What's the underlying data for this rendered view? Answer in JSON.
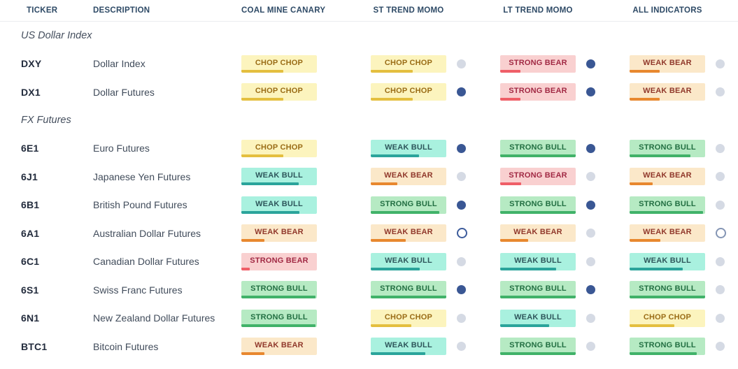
{
  "columns": [
    "TICKER",
    "DESCRIPTION",
    "COAL MINE CANARY",
    "ST TREND MOMO",
    "LT TREND MOMO",
    "ALL INDICATORS"
  ],
  "badge_types": {
    "chop": {
      "label": "CHOP CHOP",
      "bg": "#FCF4BE",
      "text": "#9A6C16",
      "bar": "#E4BF3F"
    },
    "weak_bull": {
      "label": "WEAK BULL",
      "bg": "#A9F1DF",
      "text": "#2E565B",
      "bar": "#2BA49B"
    },
    "strong_bull": {
      "label": "STRONG BULL",
      "bg": "#B6EAC3",
      "text": "#226F42",
      "bar": "#41B269"
    },
    "weak_bear": {
      "label": "WEAK BEAR",
      "bg": "#FBE8C9",
      "text": "#90382B",
      "bar": "#E8882F"
    },
    "strong_bear": {
      "label": "STRONG BEAR",
      "bg": "#F9D0D0",
      "text": "#A12944",
      "bar": "#EF5F68"
    }
  },
  "dot_colors": {
    "navy": "#3A5794",
    "gray": "#D5DAE4",
    "hollow_navy": "#3D5C9C",
    "hollow_gray": "#8495B4"
  },
  "sections": [
    {
      "label": "US Dollar Index",
      "rows": [
        {
          "ticker": "DXY",
          "description": "Dollar Index",
          "coal": {
            "type": "chop",
            "pct": 56
          },
          "st": {
            "type": "chop",
            "pct": 56,
            "dot": "gray"
          },
          "lt": {
            "type": "strong_bear",
            "pct": 27,
            "dot": "navy"
          },
          "all": {
            "type": "weak_bear",
            "pct": 40,
            "dot": "gray"
          }
        },
        {
          "ticker": "DX1",
          "description": "Dollar Futures",
          "coal": {
            "type": "chop",
            "pct": 56
          },
          "st": {
            "type": "chop",
            "pct": 56,
            "dot": "navy"
          },
          "lt": {
            "type": "strong_bear",
            "pct": 27,
            "dot": "navy"
          },
          "all": {
            "type": "weak_bear",
            "pct": 40,
            "dot": "gray"
          }
        }
      ]
    },
    {
      "label": "FX Futures",
      "rows": [
        {
          "ticker": "6E1",
          "description": "Euro Futures",
          "coal": {
            "type": "chop",
            "pct": 56
          },
          "st": {
            "type": "weak_bull",
            "pct": 64,
            "dot": "navy"
          },
          "lt": {
            "type": "strong_bull",
            "pct": 100,
            "dot": "navy"
          },
          "all": {
            "type": "strong_bull",
            "pct": 81,
            "dot": "gray"
          }
        },
        {
          "ticker": "6J1",
          "description": "Japanese Yen Futures",
          "coal": {
            "type": "weak_bull",
            "pct": 76
          },
          "st": {
            "type": "weak_bear",
            "pct": 35,
            "dot": "gray"
          },
          "lt": {
            "type": "strong_bear",
            "pct": 28,
            "dot": "gray"
          },
          "all": {
            "type": "weak_bear",
            "pct": 31,
            "dot": "gray"
          }
        },
        {
          "ticker": "6B1",
          "description": "British Pound Futures",
          "coal": {
            "type": "weak_bull",
            "pct": 77
          },
          "st": {
            "type": "strong_bull",
            "pct": 91,
            "dot": "navy"
          },
          "lt": {
            "type": "strong_bull",
            "pct": 100,
            "dot": "navy"
          },
          "all": {
            "type": "strong_bull",
            "pct": 97,
            "dot": "gray"
          }
        },
        {
          "ticker": "6A1",
          "description": "Australian Dollar Futures",
          "coal": {
            "type": "weak_bear",
            "pct": 31
          },
          "st": {
            "type": "weak_bear",
            "pct": 46,
            "dot": "hollow_navy"
          },
          "lt": {
            "type": "weak_bear",
            "pct": 37,
            "dot": "gray"
          },
          "all": {
            "type": "weak_bear",
            "pct": 41,
            "dot": "hollow_gray"
          }
        },
        {
          "ticker": "6C1",
          "description": "Canadian Dollar Futures",
          "coal": {
            "type": "strong_bear",
            "pct": 11
          },
          "st": {
            "type": "weak_bull",
            "pct": 65,
            "dot": "gray"
          },
          "lt": {
            "type": "weak_bull",
            "pct": 74,
            "dot": "gray"
          },
          "all": {
            "type": "weak_bull",
            "pct": 70,
            "dot": "gray"
          }
        },
        {
          "ticker": "6S1",
          "description": "Swiss Franc Futures",
          "coal": {
            "type": "strong_bull",
            "pct": 98
          },
          "st": {
            "type": "strong_bull",
            "pct": 100,
            "dot": "navy"
          },
          "lt": {
            "type": "strong_bull",
            "pct": 100,
            "dot": "navy"
          },
          "all": {
            "type": "strong_bull",
            "pct": 100,
            "dot": "gray"
          }
        },
        {
          "ticker": "6N1",
          "description": "New Zealand Dollar Futures",
          "coal": {
            "type": "strong_bull",
            "pct": 98
          },
          "st": {
            "type": "chop",
            "pct": 54,
            "dot": "gray"
          },
          "lt": {
            "type": "weak_bull",
            "pct": 65,
            "dot": "gray"
          },
          "all": {
            "type": "chop",
            "pct": 59,
            "dot": "gray"
          }
        },
        {
          "ticker": "BTC1",
          "description": "Bitcoin Futures",
          "coal": {
            "type": "weak_bear",
            "pct": 31
          },
          "st": {
            "type": "weak_bull",
            "pct": 72,
            "dot": "gray"
          },
          "lt": {
            "type": "strong_bull",
            "pct": 100,
            "dot": "gray"
          },
          "all": {
            "type": "strong_bull",
            "pct": 89,
            "dot": "gray"
          }
        }
      ]
    }
  ]
}
